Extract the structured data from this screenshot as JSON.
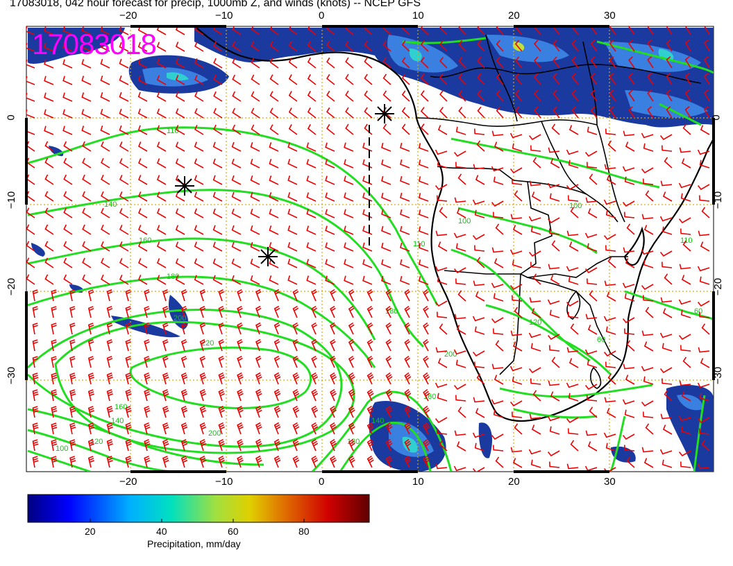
{
  "title": "17083018, 042 hour forecast for precip, 1000mb Z, and winds (knots) -- NCEP GFS",
  "stamp": "17083018",
  "lon_ticks": [
    "−20",
    "−10",
    "0",
    "10",
    "20",
    "30"
  ],
  "lat_ticks": [
    "0",
    "−10",
    "−20",
    "−30"
  ],
  "contour_labels": [
    "110",
    "140",
    "160",
    "180",
    "200",
    "220",
    "200",
    "180",
    "160",
    "140",
    "120",
    "100",
    "60",
    "120",
    "100",
    "110",
    "200",
    "160",
    "180",
    "140",
    "100",
    "60",
    "110"
  ],
  "colorbar": {
    "ticks": [
      "20",
      "40",
      "60",
      "80"
    ],
    "title": "Precipitation, mm/day"
  },
  "colors": {
    "contour": "#22dd22",
    "barb": "#ee0000",
    "grid": "#ddaa00",
    "stamp": "#ff00ff"
  }
}
